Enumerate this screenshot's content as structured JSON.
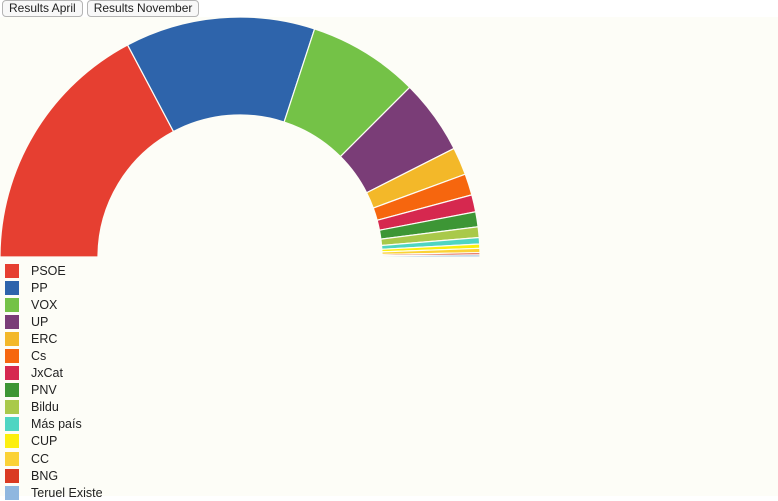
{
  "toolbar": {
    "buttons": [
      {
        "label": "Results April"
      },
      {
        "label": "Results November"
      }
    ]
  },
  "chart_data": {
    "type": "pie",
    "style": "semicircle-donut",
    "categories": [
      "PSOE",
      "PP",
      "VOX",
      "UP",
      "ERC",
      "Cs",
      "JxCat",
      "PNV",
      "Bildu",
      "Más país",
      "CUP",
      "CC",
      "BNG",
      "Teruel Existe"
    ],
    "values": [
      120,
      89,
      52,
      35,
      13,
      10,
      8,
      7,
      5,
      3,
      2,
      2,
      1,
      1
    ],
    "colors": [
      "#e63f31",
      "#2e64ab",
      "#74c247",
      "#7a3d77",
      "#f3b829",
      "#f6660e",
      "#d6284f",
      "#3d9635",
      "#a9c94a",
      "#4fd5c2",
      "#fcef0e",
      "#fbd235",
      "#da3a22",
      "#8fb7df"
    ],
    "legend_position": "bottom-left"
  }
}
